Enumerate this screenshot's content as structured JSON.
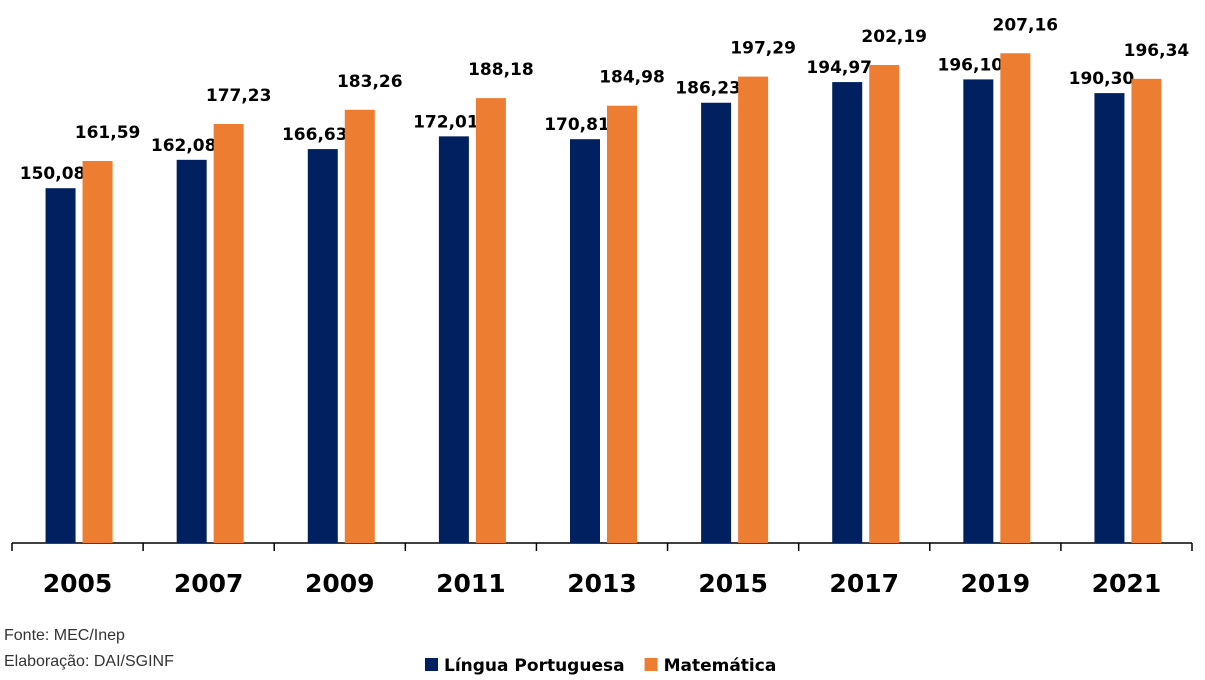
{
  "chart_data": {
    "type": "bar",
    "categories": [
      "2005",
      "2007",
      "2009",
      "2011",
      "2013",
      "2015",
      "2017",
      "2019",
      "2021"
    ],
    "series": [
      {
        "name": "Língua Portuguesa",
        "color": "#002060",
        "values": [
          150.08,
          162.08,
          166.63,
          172.01,
          170.81,
          186.23,
          194.97,
          196.1,
          190.3
        ],
        "value_labels": [
          "150,08",
          "162,08",
          "166,63",
          "172,01",
          "170,81",
          "186,23",
          "194,97",
          "196,10",
          "190,30"
        ]
      },
      {
        "name": "Matemática",
        "color": "#ed7d31",
        "values": [
          161.59,
          177.23,
          183.26,
          188.18,
          184.98,
          197.29,
          202.19,
          207.16,
          196.34
        ],
        "value_labels": [
          "161,59",
          "177,23",
          "183,26",
          "188,18",
          "184,98",
          "197,29",
          "202,19",
          "207,16",
          "196,34"
        ]
      }
    ],
    "ylim": [
      0,
      217
    ],
    "legend": "bottom",
    "notes": [
      "Fonte: MEC/Inep",
      "Elaboração: DAI/SGINF"
    ]
  }
}
